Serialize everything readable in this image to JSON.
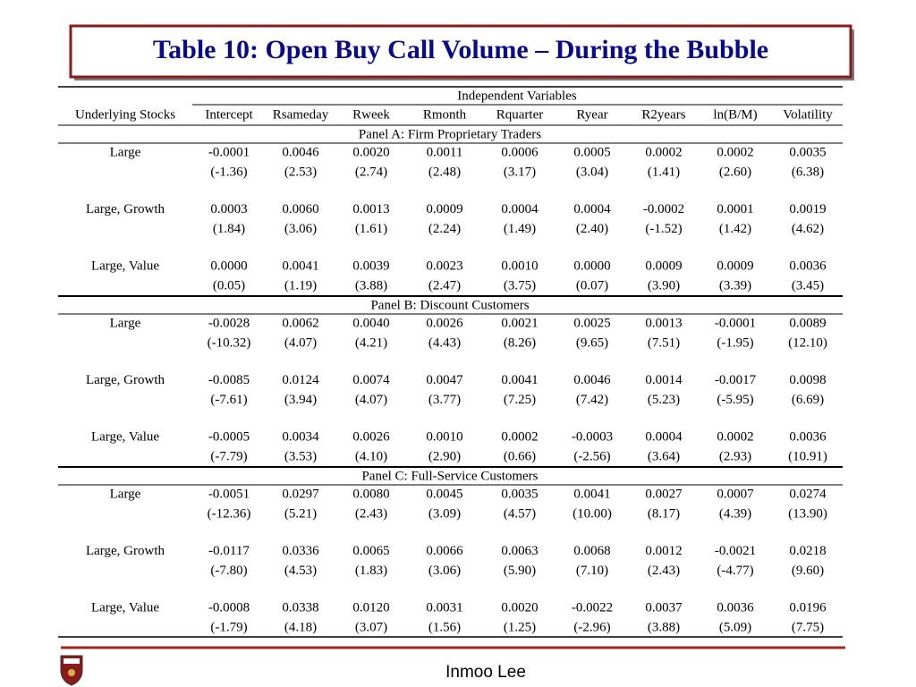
{
  "title": "Table 10: Open Buy Call Volume – During the Bubble",
  "table": {
    "group_header": "Independent Variables",
    "columns": [
      "Underlying Stocks",
      "Intercept",
      "Rsameday",
      "Rweek",
      "Rmonth",
      "Rquarter",
      "Ryear",
      "R2years",
      "ln(B/M)",
      "Volatility"
    ],
    "panels": [
      {
        "label": "Panel A:  Firm  Proprietary Traders",
        "rows": [
          {
            "name": "Large",
            "coefficients": [
              "-0.0001",
              "0.0046",
              "0.0020",
              "0.0011",
              "0.0006",
              "0.0005",
              "0.0002",
              "0.0002",
              "0.0035"
            ],
            "t_stats": [
              "(-1.36)",
              "(2.53)",
              "(2.74)",
              "(2.48)",
              "(3.17)",
              "(3.04)",
              "(1.41)",
              "(2.60)",
              "(6.38)"
            ]
          },
          {
            "name": "Large, Growth",
            "coefficients": [
              "0.0003",
              "0.0060",
              "0.0013",
              "0.0009",
              "0.0004",
              "0.0004",
              "-0.0002",
              "0.0001",
              "0.0019"
            ],
            "t_stats": [
              "(1.84)",
              "(3.06)",
              "(1.61)",
              "(2.24)",
              "(1.49)",
              "(2.40)",
              "(-1.52)",
              "(1.42)",
              "(4.62)"
            ]
          },
          {
            "name": "Large, Value",
            "coefficients": [
              "0.0000",
              "0.0041",
              "0.0039",
              "0.0023",
              "0.0010",
              "0.0000",
              "0.0009",
              "0.0009",
              "0.0036"
            ],
            "t_stats": [
              "(0.05)",
              "(1.19)",
              "(3.88)",
              "(2.47)",
              "(3.75)",
              "(0.07)",
              "(3.90)",
              "(3.39)",
              "(3.45)"
            ]
          }
        ]
      },
      {
        "label": "Panel B:  Discount Customers",
        "rows": [
          {
            "name": "Large",
            "coefficients": [
              "-0.0028",
              "0.0062",
              "0.0040",
              "0.0026",
              "0.0021",
              "0.0025",
              "0.0013",
              "-0.0001",
              "0.0089"
            ],
            "t_stats": [
              "(-10.32)",
              "(4.07)",
              "(4.21)",
              "(4.43)",
              "(8.26)",
              "(9.65)",
              "(7.51)",
              "(-1.95)",
              "(12.10)"
            ]
          },
          {
            "name": "Large, Growth",
            "coefficients": [
              "-0.0085",
              "0.0124",
              "0.0074",
              "0.0047",
              "0.0041",
              "0.0046",
              "0.0014",
              "-0.0017",
              "0.0098"
            ],
            "t_stats": [
              "(-7.61)",
              "(3.94)",
              "(4.07)",
              "(3.77)",
              "(7.25)",
              "(7.42)",
              "(5.23)",
              "(-5.95)",
              "(6.69)"
            ]
          },
          {
            "name": "Large, Value",
            "coefficients": [
              "-0.0005",
              "0.0034",
              "0.0026",
              "0.0010",
              "0.0002",
              "-0.0003",
              "0.0004",
              "0.0002",
              "0.0036"
            ],
            "t_stats": [
              "(-7.79)",
              "(3.53)",
              "(4.10)",
              "(2.90)",
              "(0.66)",
              "(-2.56)",
              "(3.64)",
              "(2.93)",
              "(10.91)"
            ]
          }
        ]
      },
      {
        "label": "Panel C:  Full-Service Customers",
        "rows": [
          {
            "name": "Large",
            "coefficients": [
              "-0.0051",
              "0.0297",
              "0.0080",
              "0.0045",
              "0.0035",
              "0.0041",
              "0.0027",
              "0.0007",
              "0.0274"
            ],
            "t_stats": [
              "(-12.36)",
              "(5.21)",
              "(2.43)",
              "(3.09)",
              "(4.57)",
              "(10.00)",
              "(8.17)",
              "(4.39)",
              "(13.90)"
            ]
          },
          {
            "name": "Large, Growth",
            "coefficients": [
              "-0.0117",
              "0.0336",
              "0.0065",
              "0.0066",
              "0.0063",
              "0.0068",
              "0.0012",
              "-0.0021",
              "0.0218"
            ],
            "t_stats": [
              "(-7.80)",
              "(4.53)",
              "(1.83)",
              "(3.06)",
              "(5.90)",
              "(7.10)",
              "(2.43)",
              "(-4.77)",
              "(9.60)"
            ]
          },
          {
            "name": "Large, Value",
            "coefficients": [
              "-0.0008",
              "0.0338",
              "0.0120",
              "0.0031",
              "0.0020",
              "-0.0022",
              "0.0037",
              "0.0036",
              "0.0196"
            ],
            "t_stats": [
              "(-1.79)",
              "(4.18)",
              "(3.07)",
              "(1.56)",
              "(1.25)",
              "(-2.96)",
              "(3.88)",
              "(5.09)",
              "(7.75)"
            ]
          }
        ]
      }
    ]
  },
  "footer": "Inmoo Lee"
}
